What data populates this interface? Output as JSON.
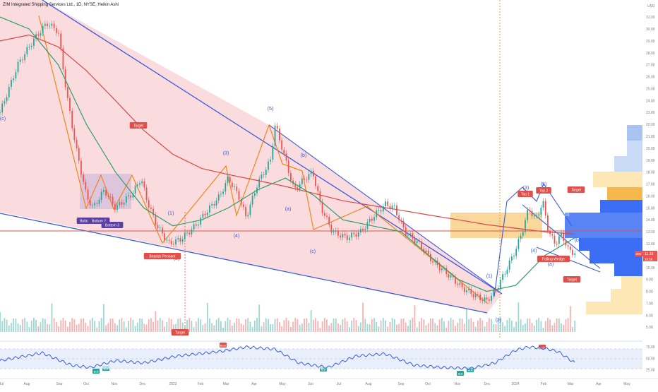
{
  "header": {
    "title": "ZIM Integrated Shipping Services Ltd., 1D, NYSE, Heikin Ashi"
  },
  "price_axis": {
    "unit": "USD",
    "ticks": [
      "31.00",
      "30.00",
      "29.00",
      "28.00",
      "27.00",
      "26.00",
      "25.00",
      "24.00",
      "23.00",
      "22.00",
      "21.00",
      "20.00",
      "19.00",
      "18.00",
      "17.00",
      "16.00",
      "15.00",
      "14.00",
      "13.00",
      "12.00",
      "11.00",
      "10.00",
      "9.00",
      "8.00",
      "7.00",
      "6.00",
      "5.00"
    ],
    "current_price": "11.19",
    "countdown": "10:59",
    "symbol_tag": "ZIM"
  },
  "rsi_axis": {
    "ticks": [
      "75.00",
      "50.00",
      "25.00"
    ]
  },
  "time_axis": {
    "ticks": [
      "Jul",
      "Aug",
      "Sep",
      "Oct",
      "Nov",
      "Dec",
      "2023",
      "Feb",
      "Mar",
      "Apr",
      "May",
      "Jun",
      "Jul",
      "Aug",
      "Sep",
      "Oct",
      "Nov",
      "Dec",
      "2024",
      "Feb",
      "Mar",
      "Apr",
      "May"
    ]
  },
  "annotations": {
    "wave_labels": [
      "(c)",
      "(1)",
      "(2)",
      "(3)",
      "(4)",
      "(5)",
      "(a)",
      "(b)",
      "(c)",
      "(1)",
      "(2)",
      "(3)",
      "(4)",
      "(5)",
      "(a)",
      "(b)"
    ],
    "badges": [
      "Target",
      "Bottom",
      "Bottom 2",
      "Bottom 3",
      "Bearish Pennant",
      "Target",
      "Top 1",
      "Top 2",
      "Target",
      "Falling Wedge",
      "Target"
    ],
    "rsi_badges": [
      "Bear",
      "Bull",
      "Bull",
      "Bull",
      "Bull",
      "Bull",
      "Bear"
    ],
    "wedge_label": "(1)"
  },
  "colors": {
    "bull": "#26a69a",
    "bear": "#ef5350",
    "channel_fill": "#f9c9cc",
    "trendline": "#3b5bdb",
    "ma_long": "#d94848",
    "ma_mid": "#2e9e6b",
    "zigzag": "#f0861e",
    "resistance": "#e0504a",
    "rsi_line": "#3b5bdb",
    "rsi_band": "#e3ecfb"
  },
  "chart_data": [
    {
      "type": "candlestick",
      "title": "ZIM Integrated Shipping Services Ltd., 1D, NYSE, Heikin Ashi",
      "ylabel": "USD",
      "ylim": [
        4.6,
        31.6
      ],
      "x_range": [
        "2022-07-01",
        "2024-05-15"
      ],
      "resistance_level": 13.0,
      "series": [
        {
          "name": "price",
          "points": [
            [
              "2022-07-01",
              23.0
            ],
            [
              "2022-07-20",
              27.0
            ],
            [
              "2022-08-05",
              29.0
            ],
            [
              "2022-08-20",
              30.5
            ],
            [
              "2022-09-01",
              29.8
            ],
            [
              "2022-09-10",
              24.5
            ],
            [
              "2022-09-20",
              20.0
            ],
            [
              "2022-10-01",
              16.0
            ],
            [
              "2022-10-08",
              15.0
            ],
            [
              "2022-10-20",
              16.5
            ],
            [
              "2022-11-01",
              15.0
            ],
            [
              "2022-11-10",
              15.6
            ],
            [
              "2022-11-20",
              16.3
            ],
            [
              "2022-11-28",
              17.5
            ],
            [
              "2022-12-05",
              15.5
            ],
            [
              "2022-12-15",
              13.5
            ],
            [
              "2022-12-28",
              12.0
            ],
            [
              "2023-01-10",
              12.4
            ],
            [
              "2023-01-25",
              13.5
            ],
            [
              "2023-02-05",
              14.6
            ],
            [
              "2023-02-20",
              16.0
            ],
            [
              "2023-03-01",
              17.5
            ],
            [
              "2023-03-12",
              16.0
            ],
            [
              "2023-03-20",
              14.2
            ],
            [
              "2023-04-01",
              17.0
            ],
            [
              "2023-04-15",
              19.0
            ],
            [
              "2023-04-20",
              22.0
            ],
            [
              "2023-05-01",
              19.0
            ],
            [
              "2023-05-10",
              16.5
            ],
            [
              "2023-05-22",
              17.5
            ],
            [
              "2023-05-30",
              18.0
            ],
            [
              "2023-06-08",
              15.0
            ],
            [
              "2023-06-20",
              13.0
            ],
            [
              "2023-07-05",
              12.5
            ],
            [
              "2023-07-20",
              13.0
            ],
            [
              "2023-08-05",
              14.5
            ],
            [
              "2023-08-15",
              15.3
            ],
            [
              "2023-08-25",
              15.0
            ],
            [
              "2023-09-05",
              13.0
            ],
            [
              "2023-09-20",
              12.0
            ],
            [
              "2023-10-05",
              10.5
            ],
            [
              "2023-10-20",
              9.5
            ],
            [
              "2023-11-05",
              8.3
            ],
            [
              "2023-11-20",
              7.6
            ],
            [
              "2023-12-01",
              7.2
            ],
            [
              "2023-12-10",
              8.0
            ],
            [
              "2023-12-20",
              9.5
            ],
            [
              "2024-01-01",
              11.5
            ],
            [
              "2024-01-08",
              13.0
            ],
            [
              "2024-01-15",
              15.0
            ],
            [
              "2024-01-22",
              14.0
            ],
            [
              "2024-01-30",
              15.5
            ],
            [
              "2024-02-05",
              13.0
            ],
            [
              "2024-02-12",
              12.0
            ],
            [
              "2024-02-19",
              12.8
            ],
            [
              "2024-02-26",
              11.5
            ],
            [
              "2024-03-04",
              11.2
            ]
          ]
        },
        {
          "name": "ma_long",
          "points": [
            [
              "2022-07-01",
              29.0
            ],
            [
              "2022-08-01",
              29.5
            ],
            [
              "2022-09-01",
              28.5
            ],
            [
              "2022-10-01",
              26.5
            ],
            [
              "2022-11-01",
              24.0
            ],
            [
              "2022-12-01",
              21.5
            ],
            [
              "2023-01-01",
              19.5
            ],
            [
              "2023-02-01",
              18.3
            ],
            [
              "2023-03-01",
              17.8
            ],
            [
              "2023-04-01",
              17.3
            ],
            [
              "2023-05-01",
              16.8
            ],
            [
              "2023-06-01",
              16.2
            ],
            [
              "2023-07-01",
              15.6
            ],
            [
              "2023-08-01",
              15.2
            ],
            [
              "2023-09-01",
              14.8
            ],
            [
              "2023-10-01",
              14.4
            ],
            [
              "2023-11-01",
              14.0
            ],
            [
              "2023-12-01",
              13.6
            ],
            [
              "2024-01-01",
              13.3
            ],
            [
              "2024-02-01",
              13.0
            ],
            [
              "2024-03-04",
              12.8
            ]
          ]
        },
        {
          "name": "ma_mid",
          "points": [
            [
              "2022-07-01",
              31.0
            ],
            [
              "2022-08-01",
              30.0
            ],
            [
              "2022-09-01",
              27.0
            ],
            [
              "2022-10-01",
              22.0
            ],
            [
              "2022-11-01",
              18.0
            ],
            [
              "2022-12-01",
              15.0
            ],
            [
              "2023-01-01",
              13.5
            ],
            [
              "2023-02-01",
              14.0
            ],
            [
              "2023-03-01",
              15.0
            ],
            [
              "2023-04-01",
              16.5
            ],
            [
              "2023-05-01",
              17.5
            ],
            [
              "2023-06-01",
              16.0
            ],
            [
              "2023-07-01",
              14.0
            ],
            [
              "2023-08-01",
              13.5
            ],
            [
              "2023-09-01",
              13.0
            ],
            [
              "2023-10-01",
              11.0
            ],
            [
              "2023-11-01",
              9.0
            ],
            [
              "2023-12-01",
              8.0
            ],
            [
              "2024-01-01",
              8.5
            ],
            [
              "2024-02-01",
              11.0
            ],
            [
              "2024-03-04",
              12.5
            ]
          ]
        }
      ]
    },
    {
      "type": "line",
      "title": "",
      "ylim": [
        15,
        80
      ],
      "series": [
        {
          "name": "RSI",
          "points": [
            [
              "2022-07-01",
              45
            ],
            [
              "2022-08-15",
              62
            ],
            [
              "2022-09-15",
              35
            ],
            [
              "2022-10-05",
              30
            ],
            [
              "2022-11-01",
              45
            ],
            [
              "2022-12-01",
              40
            ],
            [
              "2023-01-05",
              55
            ],
            [
              "2023-02-20",
              65
            ],
            [
              "2023-03-20",
              75
            ],
            [
              "2023-04-20",
              70
            ],
            [
              "2023-05-15",
              40
            ],
            [
              "2023-06-15",
              30
            ],
            [
              "2023-07-15",
              55
            ],
            [
              "2023-08-15",
              60
            ],
            [
              "2023-09-15",
              35
            ],
            [
              "2023-10-15",
              30
            ],
            [
              "2023-11-15",
              28
            ],
            [
              "2023-12-10",
              40
            ],
            [
              "2024-01-01",
              68
            ],
            [
              "2024-01-15",
              75
            ],
            [
              "2024-02-01",
              72
            ],
            [
              "2024-02-15",
              65
            ],
            [
              "2024-03-04",
              40
            ]
          ]
        }
      ]
    }
  ]
}
